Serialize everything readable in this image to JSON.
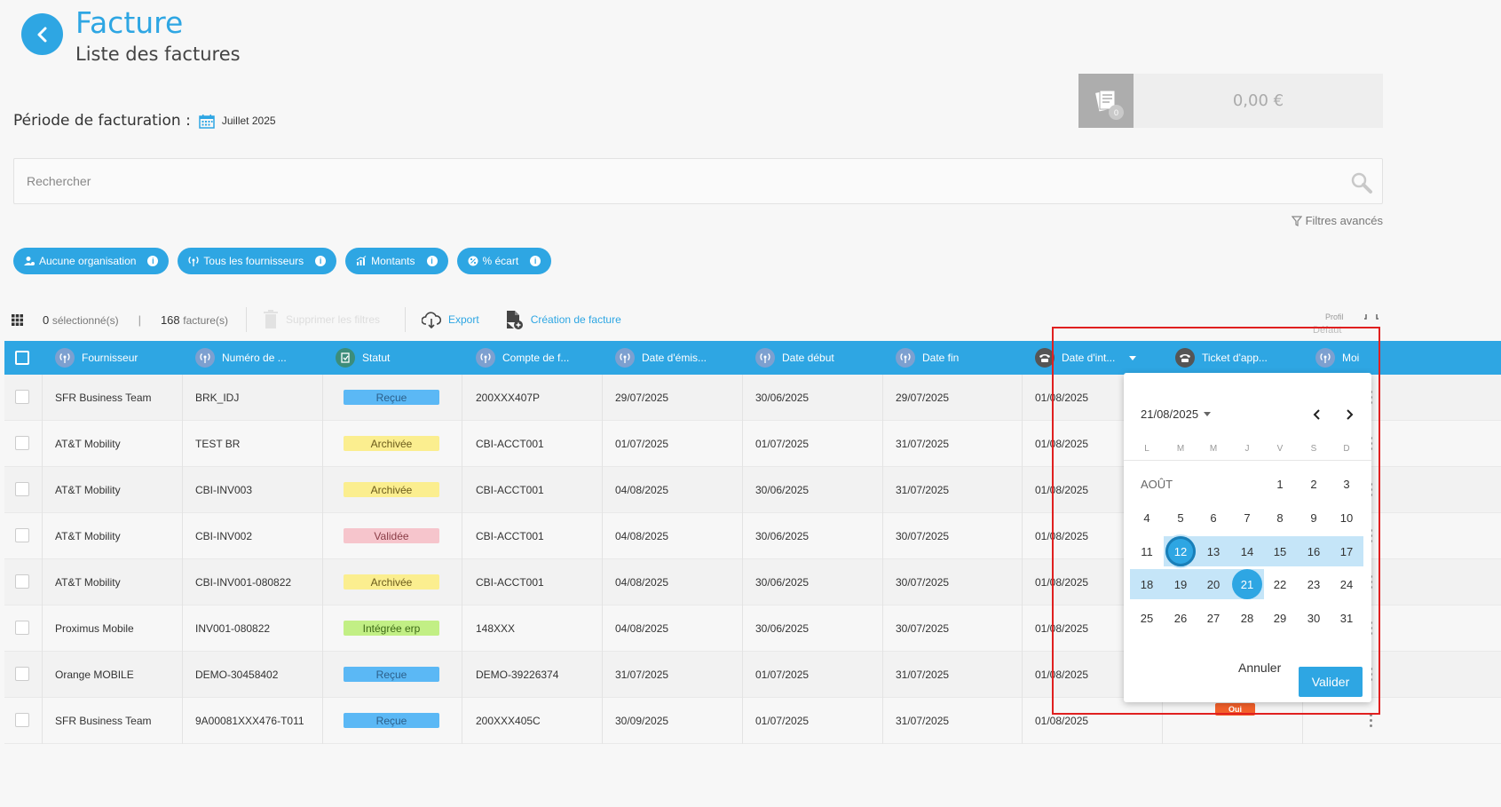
{
  "header": {
    "title": "Facture",
    "subtitle": "Liste des factures"
  },
  "period": {
    "label": "Période de facturation :",
    "value": "Juillet 2025"
  },
  "amount": {
    "value": "0,00 €",
    "badge": "0"
  },
  "search": {
    "placeholder": "Rechercher"
  },
  "advanced_filters": "Filtres avancés",
  "chips": [
    {
      "label": "Aucune organisation",
      "icon": "org-icon"
    },
    {
      "label": "Tous les fournisseurs",
      "icon": "antenna-icon"
    },
    {
      "label": "Montants",
      "icon": "chart-icon"
    },
    {
      "label": "% écart",
      "icon": "percent-icon"
    }
  ],
  "toolbar": {
    "selected_count": "0",
    "selected_label": "sélectionné(s)",
    "separator": "|",
    "invoice_count": "168",
    "invoice_label": "facture(s)",
    "clear_filters": "Supprimer les filtres",
    "export": "Export",
    "create": "Création de facture",
    "profil": "Profil",
    "defaut": "Défaut"
  },
  "columns": [
    {
      "label": "Fournisseur",
      "icon": "antenna-icon"
    },
    {
      "label": "Numéro de ...",
      "icon": "antenna-icon"
    },
    {
      "label": "Statut",
      "icon": "status-icon"
    },
    {
      "label": "Compte de f...",
      "icon": "antenna-icon"
    },
    {
      "label": "Date d'émis...",
      "icon": "antenna-icon"
    },
    {
      "label": "Date début",
      "icon": "antenna-icon"
    },
    {
      "label": "Date fin",
      "icon": "antenna-icon"
    },
    {
      "label": "Date d'int...",
      "icon": "phone-icon"
    },
    {
      "label": "Ticket d'app...",
      "icon": "phone-icon"
    },
    {
      "label": "Moi",
      "icon": "antenna-icon"
    }
  ],
  "rows": [
    {
      "supplier": "SFR Business Team",
      "number": "BRK_IDJ",
      "status": "Reçue",
      "status_type": "recue",
      "account": "200XXX407P",
      "emission": "29/07/2025",
      "start": "30/06/2025",
      "end": "29/07/2025",
      "integration": "01/08/2025"
    },
    {
      "supplier": "AT&T Mobility",
      "number": "TEST BR",
      "status": "Archivée",
      "status_type": "archivee",
      "account": "CBI-ACCT001",
      "emission": "01/07/2025",
      "start": "01/07/2025",
      "end": "31/07/2025",
      "integration": "01/08/2025"
    },
    {
      "supplier": "AT&T Mobility",
      "number": "CBI-INV003",
      "status": "Archivée",
      "status_type": "archivee",
      "account": "CBI-ACCT001",
      "emission": "04/08/2025",
      "start": "30/06/2025",
      "end": "31/07/2025",
      "integration": "01/08/2025"
    },
    {
      "supplier": "AT&T Mobility",
      "number": "CBI-INV002",
      "status": "Validée",
      "status_type": "validee",
      "account": "CBI-ACCT001",
      "emission": "04/08/2025",
      "start": "30/06/2025",
      "end": "30/07/2025",
      "integration": "01/08/2025"
    },
    {
      "supplier": "AT&T Mobility",
      "number": "CBI-INV001-080822",
      "status": "Archivée",
      "status_type": "archivee",
      "account": "CBI-ACCT001",
      "emission": "04/08/2025",
      "start": "30/06/2025",
      "end": "30/07/2025",
      "integration": "01/08/2025"
    },
    {
      "supplier": "Proximus Mobile",
      "number": "INV001-080822",
      "status": "Intégrée erp",
      "status_type": "integree",
      "account": "148XXX",
      "emission": "04/08/2025",
      "start": "30/06/2025",
      "end": "30/07/2025",
      "integration": "01/08/2025"
    },
    {
      "supplier": "Orange MOBILE",
      "number": "DEMO-30458402",
      "status": "Reçue",
      "status_type": "recue",
      "account": "DEMO-39226374",
      "emission": "31/07/2025",
      "start": "01/07/2025",
      "end": "31/07/2025",
      "integration": "01/08/2025"
    },
    {
      "supplier": "SFR Business Team",
      "number": "9A00081XXX476-T011",
      "status": "Reçue",
      "status_type": "recue",
      "account": "200XXX405C",
      "emission": "30/09/2025",
      "start": "01/07/2025",
      "end": "31/07/2025",
      "integration": "01/08/2025",
      "ticket_badge": "Oui"
    }
  ],
  "datepicker": {
    "header": "21/08/2025",
    "weekdays": [
      "L",
      "M",
      "M",
      "J",
      "V",
      "S",
      "D"
    ],
    "month_label": "AOÛT",
    "weeks": [
      [
        "",
        "",
        "",
        "",
        "1",
        "2",
        "3"
      ],
      [
        "4",
        "5",
        "6",
        "7",
        "8",
        "9",
        "10"
      ],
      [
        "11",
        "12",
        "13",
        "14",
        "15",
        "16",
        "17"
      ],
      [
        "18",
        "19",
        "20",
        "21",
        "22",
        "23",
        "24"
      ],
      [
        "25",
        "26",
        "27",
        "28",
        "29",
        "30",
        "31"
      ]
    ],
    "range_start": 12,
    "range_end": 21,
    "cancel": "Annuler",
    "confirm": "Valider"
  },
  "colors": {
    "accent": "#2ea6e3",
    "highlight": "#e02020"
  }
}
